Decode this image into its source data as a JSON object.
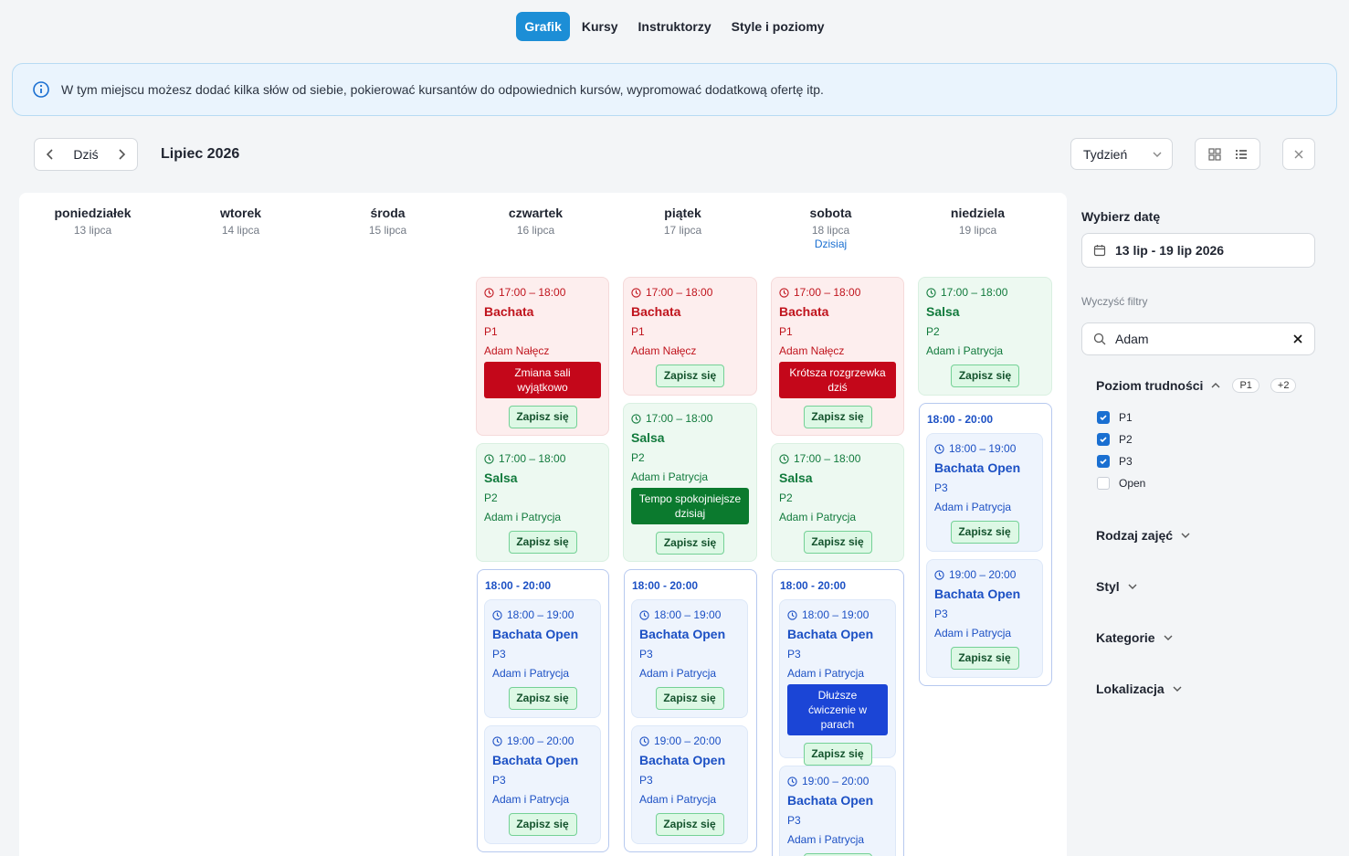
{
  "nav": {
    "tabs": [
      {
        "label": "Grafik",
        "active": true
      },
      {
        "label": "Kursy",
        "active": false
      },
      {
        "label": "Instruktorzy",
        "active": false
      },
      {
        "label": "Style i poziomy",
        "active": false
      }
    ]
  },
  "info": {
    "icon": "info-icon",
    "text": "W tym miejscu możesz dodać kilka słów od siebie, pokierować kursantów do odpowiednich kursów, wypromować dodatkową ofertę itp."
  },
  "toolbar": {
    "today_label": "Dziś",
    "month_title": "Lipiec 2026",
    "view_select": "Tydzień"
  },
  "days": [
    {
      "name": "poniedziałek",
      "date": "13 lipca"
    },
    {
      "name": "wtorek",
      "date": "14 lipca"
    },
    {
      "name": "środa",
      "date": "15 lipca"
    },
    {
      "name": "czwartek",
      "date": "16 lipca"
    },
    {
      "name": "piątek",
      "date": "17 lipca"
    },
    {
      "name": "sobota",
      "date": "18 lipca",
      "today": "Dzisiaj"
    },
    {
      "name": "niedziela",
      "date": "19 lipca"
    }
  ],
  "signup_label": "Zapisz się",
  "events": {
    "thu_bachata": {
      "time": "17:00 – 18:00",
      "title": "Bachata",
      "level": "P1",
      "instructor": "Adam Nałęcz",
      "note": "Zmiana sali wyjątkowo"
    },
    "thu_salsa": {
      "time": "17:00 – 18:00",
      "title": "Salsa",
      "level": "P2",
      "instructor": "Adam i Patrycja"
    },
    "thu_group": {
      "range": "18:00 - 20:00"
    },
    "thu_open1": {
      "time": "18:00 – 19:00",
      "title": "Bachata Open",
      "level": "P3",
      "instructor": "Adam i Patrycja"
    },
    "thu_open2": {
      "time": "19:00 – 20:00",
      "title": "Bachata Open",
      "level": "P3",
      "instructor": "Adam i Patrycja"
    },
    "fri_bachata": {
      "time": "17:00 – 18:00",
      "title": "Bachata",
      "level": "P1",
      "instructor": "Adam Nałęcz"
    },
    "fri_salsa": {
      "time": "17:00 – 18:00",
      "title": "Salsa",
      "level": "P2",
      "instructor": "Adam i Patrycja",
      "note": "Tempo spokojniejsze dzisiaj"
    },
    "fri_group": {
      "range": "18:00 - 20:00"
    },
    "fri_open1": {
      "time": "18:00 – 19:00",
      "title": "Bachata Open",
      "level": "P3",
      "instructor": "Adam i Patrycja"
    },
    "fri_open2": {
      "time": "19:00 – 20:00",
      "title": "Bachata Open",
      "level": "P3",
      "instructor": "Adam i Patrycja"
    },
    "sat_bachata": {
      "time": "17:00 – 18:00",
      "title": "Bachata",
      "level": "P1",
      "instructor": "Adam Nałęcz",
      "note": "Krótsza rozgrzewka dziś"
    },
    "sat_salsa": {
      "time": "17:00 – 18:00",
      "title": "Salsa",
      "level": "P2",
      "instructor": "Adam i Patrycja"
    },
    "sat_group": {
      "range": "18:00 - 20:00"
    },
    "sat_open1": {
      "time": "18:00 – 19:00",
      "title": "Bachata Open",
      "level": "P3",
      "instructor": "Adam i Patrycja",
      "note": "Dłuższe ćwiczenie w parach"
    },
    "sat_open2": {
      "time": "19:00 – 20:00",
      "title": "Bachata Open",
      "level": "P3",
      "instructor": "Adam i Patrycja"
    },
    "sun_salsa": {
      "time": "17:00 – 18:00",
      "title": "Salsa",
      "level": "P2",
      "instructor": "Adam i Patrycja"
    },
    "sun_group": {
      "range": "18:00 - 20:00"
    },
    "sun_open1": {
      "time": "18:00 – 19:00",
      "title": "Bachata Open",
      "level": "P3",
      "instructor": "Adam i Patrycja"
    },
    "sun_open2": {
      "time": "19:00 – 20:00",
      "title": "Bachata Open",
      "level": "P3",
      "instructor": "Adam i Patrycja"
    }
  },
  "sidebar": {
    "date_title": "Wybierz datę",
    "date_value": "13 lip - 19 lip 2026",
    "clear_filters": "Wyczyść filtry",
    "search_value": "Adam",
    "level_filter": {
      "title": "Poziom trudności",
      "pill_1": "P1",
      "pill_2": "+2",
      "options": [
        {
          "label": "P1",
          "checked": true
        },
        {
          "label": "P2",
          "checked": true
        },
        {
          "label": "P3",
          "checked": true
        },
        {
          "label": "Open",
          "checked": false
        }
      ]
    },
    "type_filter": "Rodzaj zajęć",
    "style_filter": "Styl",
    "category_filter": "Kategorie",
    "location_filter": "Lokalizacja"
  },
  "colors": {
    "accent": "#1c8ed6",
    "red_event": "#c0141d",
    "green_event": "#117a3c",
    "blue_event": "#1c50c4"
  }
}
